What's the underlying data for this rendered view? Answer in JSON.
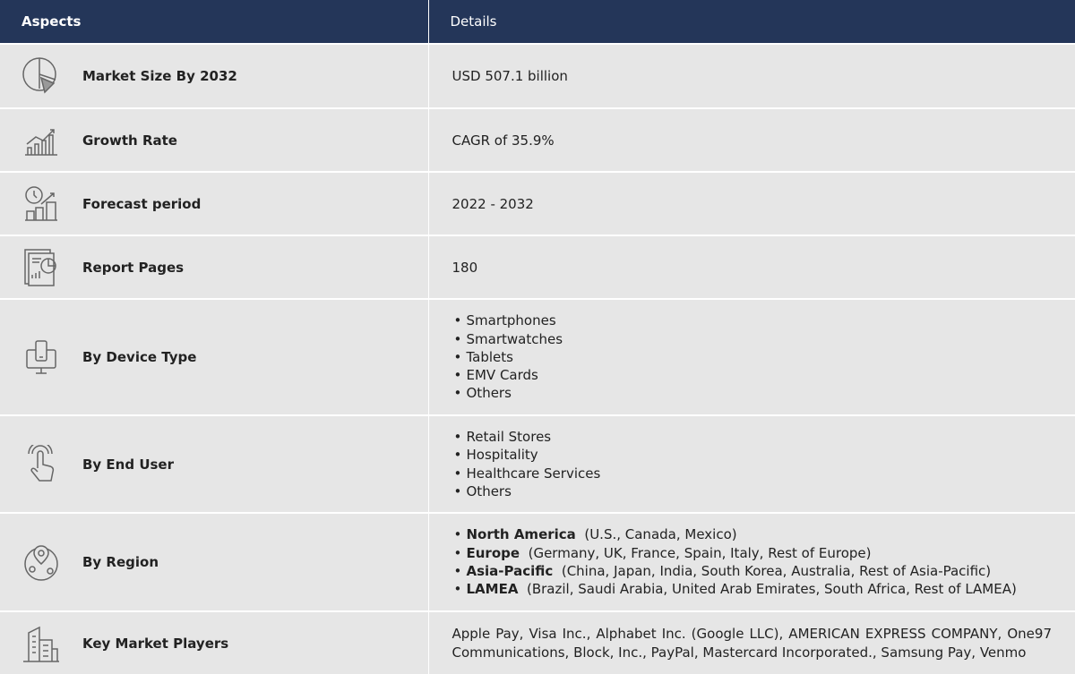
{
  "header": {
    "aspects": "Aspects",
    "details": "Details"
  },
  "rows": [
    {
      "icon": "pie-chart-icon",
      "label": "Market Size By 2032",
      "value": "USD 507.1 billion"
    },
    {
      "icon": "bar-growth-icon",
      "label": "Growth Rate",
      "value": "CAGR of 35.9%"
    },
    {
      "icon": "forecast-clock-chart-icon",
      "label": "Forecast period",
      "value": "2022 - 2032"
    },
    {
      "icon": "report-document-icon",
      "label": "Report Pages",
      "value": "180"
    },
    {
      "icon": "devices-icon",
      "label": "By Device Type",
      "items": [
        "Smartphones",
        "Smartwatches",
        "Tablets",
        "EMV Cards",
        "Others"
      ]
    },
    {
      "icon": "touch-hand-icon",
      "label": "By End User",
      "items": [
        "Retail Stores",
        "Hospitality",
        "Healthcare Services",
        "Others"
      ]
    },
    {
      "icon": "globe-location-icon",
      "label": "By Region",
      "regions": [
        {
          "name": "North America",
          "detail": "(U.S., Canada, Mexico)"
        },
        {
          "name": "Europe",
          "detail": "(Germany, UK, France, Spain, Italy, Rest of Europe)"
        },
        {
          "name": "Asia-Pacific",
          "detail": "(China, Japan, India, South Korea, Australia, Rest of Asia-Pacific)"
        },
        {
          "name": "LAMEA",
          "detail": "(Brazil, Saudi Arabia, United Arab Emirates, South Africa, Rest of LAMEA)"
        }
      ]
    },
    {
      "icon": "buildings-icon",
      "label": "Key Market Players",
      "value": "Apple Pay, Visa Inc., Alphabet Inc. (Google LLC), AMERICAN EXPRESS COMPANY, One97 Communications, Block, Inc., PayPal, Mastercard Incorporated., Samsung Pay, Venmo"
    }
  ],
  "colors": {
    "header_bg": "#243659",
    "row_bg": "#e6e6e6",
    "icon": "#666666"
  }
}
